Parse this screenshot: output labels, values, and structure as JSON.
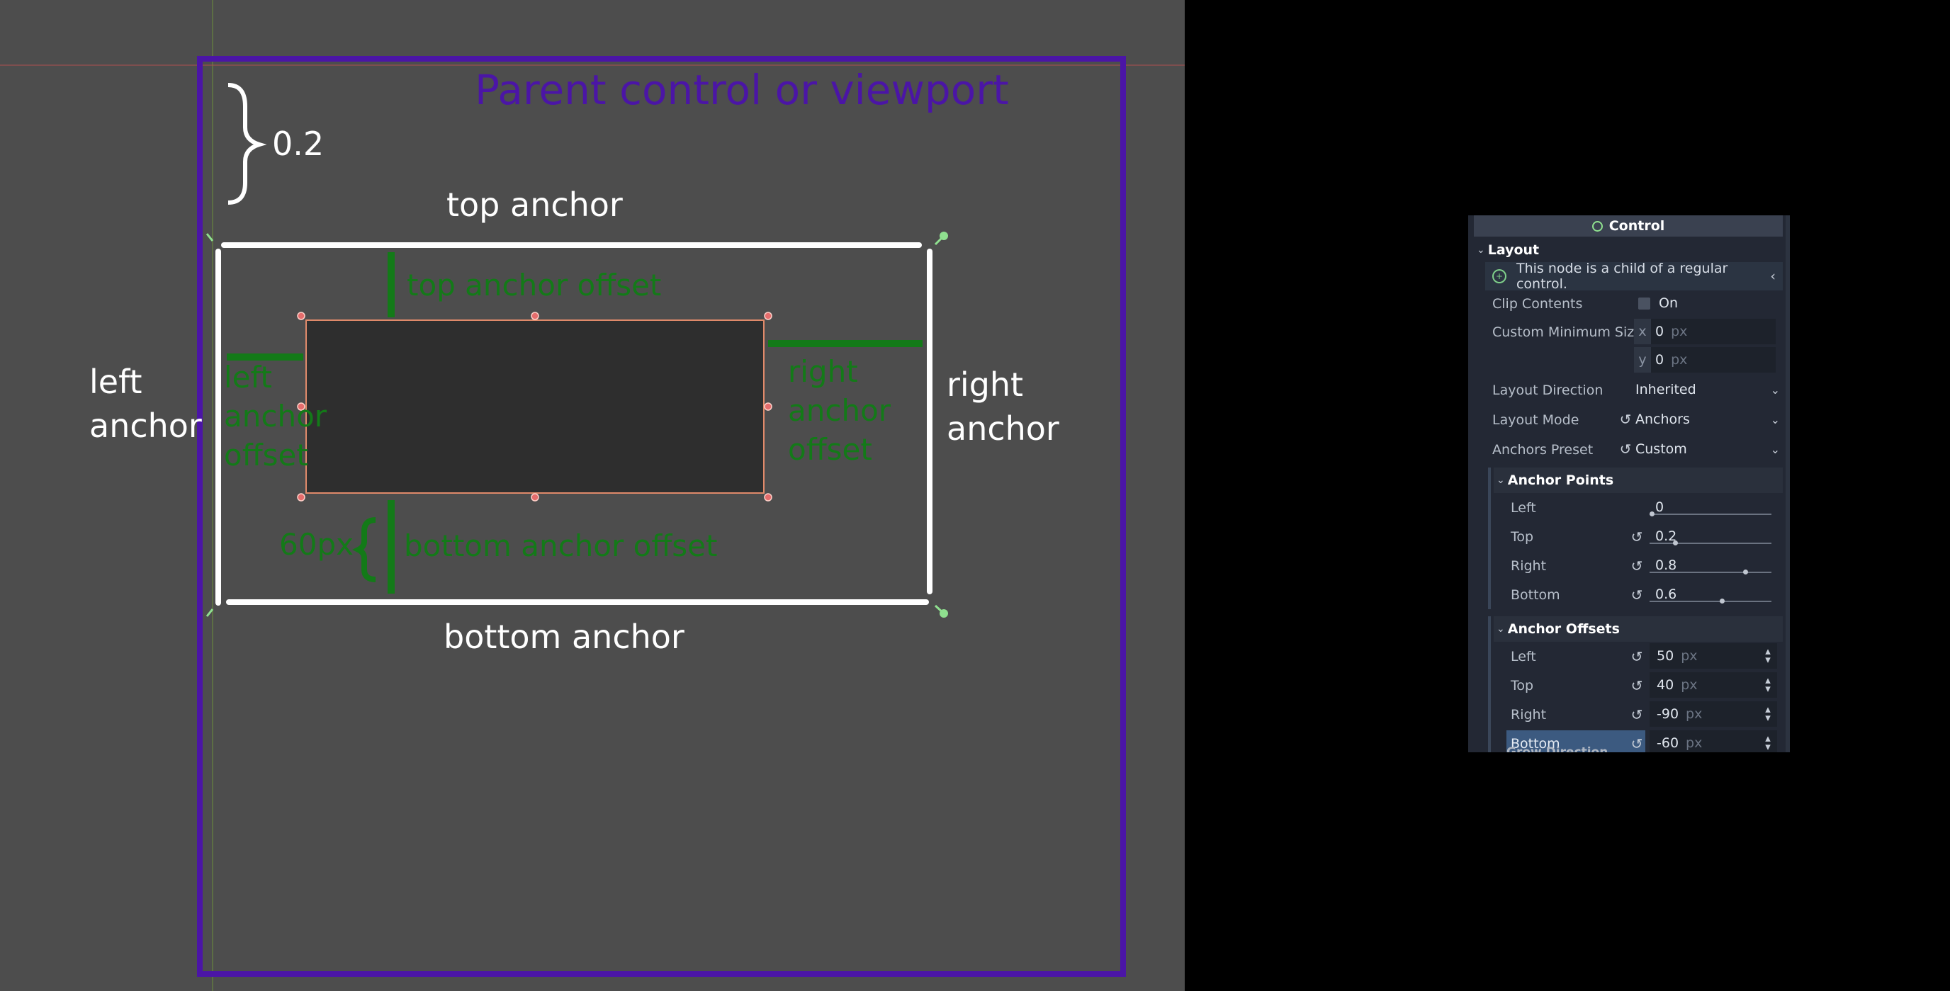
{
  "diagram": {
    "parent_label": "Parent control or viewport",
    "top_ratio_label": "0.2",
    "top_anchor": "top anchor",
    "bottom_anchor": "bottom anchor",
    "left_anchor_line1": "left",
    "left_anchor_line2": "anchor",
    "right_anchor_line1": "right",
    "right_anchor_line2": "anchor",
    "top_offset": "top anchor offset",
    "bottom_offset": "bottom anchor offset",
    "bottom_offset_value": "60px",
    "left_offset_line1": "left",
    "left_offset_line2": "anchor",
    "left_offset_line3": "offset",
    "right_offset_line1": "right",
    "right_offset_line2": "anchor",
    "right_offset_line3": "offset",
    "colors": {
      "purple": "#4b15a6",
      "green": "#137a18",
      "white": "#ffffff",
      "canvas": "#4d4d4d",
      "control": "#2e2e2e",
      "control_border": "#e08a6a"
    }
  },
  "inspector": {
    "node_title": "Control",
    "layout_section": "Layout",
    "info_message": "This node is a child of a regular control.",
    "clip_contents": {
      "label": "Clip Contents",
      "value": "On"
    },
    "custom_min_size": {
      "label": "Custom Minimum Size",
      "x_axis": "x",
      "y_axis": "y",
      "x": "0",
      "y": "0",
      "unit": "px"
    },
    "layout_direction": {
      "label": "Layout Direction",
      "value": "Inherited"
    },
    "layout_mode": {
      "label": "Layout Mode",
      "value": "Anchors"
    },
    "anchors_preset": {
      "label": "Anchors Preset",
      "value": "Custom"
    },
    "anchor_points": {
      "title": "Anchor Points",
      "left": {
        "label": "Left",
        "value": "0",
        "fraction": 0
      },
      "top": {
        "label": "Top",
        "value": "0.2",
        "fraction": 0.2
      },
      "right": {
        "label": "Right",
        "value": "0.8",
        "fraction": 0.8
      },
      "bottom": {
        "label": "Bottom",
        "value": "0.6",
        "fraction": 0.6
      }
    },
    "anchor_offsets": {
      "title": "Anchor Offsets",
      "unit": "px",
      "left": {
        "label": "Left",
        "value": "50"
      },
      "top": {
        "label": "Top",
        "value": "40"
      },
      "right": {
        "label": "Right",
        "value": "-90"
      },
      "bottom": {
        "label": "Bottom",
        "value": "-60"
      }
    },
    "next_section_partial": "Grow Direction"
  }
}
